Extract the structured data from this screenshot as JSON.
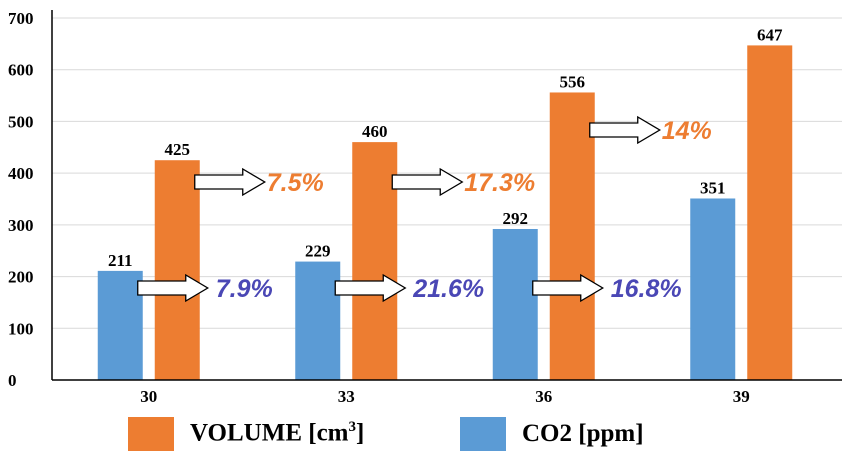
{
  "chart_data": {
    "type": "bar",
    "categories": [
      "30",
      "33",
      "36",
      "39"
    ],
    "series": [
      {
        "name": "CO2 [ppm]",
        "values": [
          211,
          229,
          292,
          351
        ],
        "color": "#5b9bd5"
      },
      {
        "name": "VOLUME [cm3]",
        "values": [
          425,
          460,
          556,
          647
        ],
        "color": "#ed7d31"
      }
    ],
    "ylim": [
      0,
      700
    ],
    "yticks": [
      "0",
      "100",
      "200",
      "300",
      "400",
      "500",
      "600",
      "700"
    ],
    "grid": true,
    "legend_position": "bottom",
    "annotations": {
      "co2_changes": [
        "7.9%",
        "21.6%",
        "16.8%"
      ],
      "co2_color": "#4a47b5",
      "volume_changes": [
        "7.5%",
        "17.3%",
        "14%"
      ],
      "volume_color": "#ed7d31"
    }
  },
  "legend": {
    "volume_label": "VOLUME [cm",
    "volume_superscript": "3",
    "volume_close": "]",
    "co2_label": "CO2 [ppm]"
  }
}
